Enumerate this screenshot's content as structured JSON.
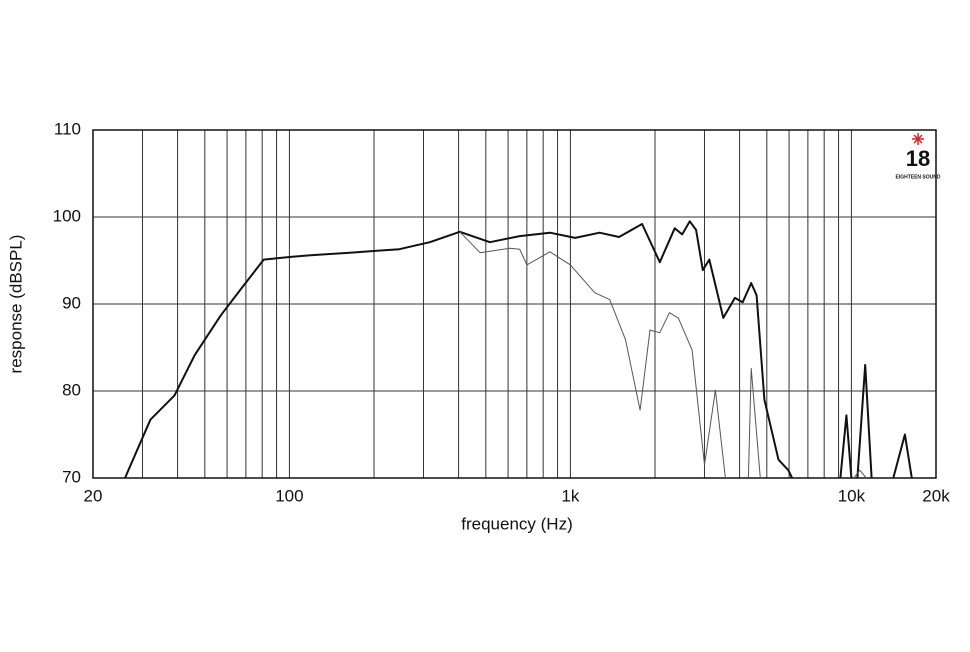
{
  "chart_data": {
    "type": "line",
    "xlabel": "frequency (Hz)",
    "ylabel": "response (dBSPL)",
    "logo": "18",
    "logo_subtitle": "EIGHTEEN SOUND",
    "xscale": "log",
    "grid": true,
    "xlim": [
      20,
      20000
    ],
    "ylim": [
      70,
      110
    ],
    "xticks": [
      20,
      100,
      {
        "value": 1000,
        "label": "1k"
      },
      {
        "value": 10000,
        "label": "10k"
      },
      {
        "value": 20000,
        "label": "20k"
      }
    ],
    "xgrid": [
      30,
      40,
      50,
      60,
      70,
      80,
      90,
      200,
      300,
      400,
      500,
      600,
      700,
      800,
      900,
      2000,
      3000,
      4000,
      5000,
      6000,
      7000,
      8000,
      9000
    ],
    "yticks": [
      70,
      80,
      90,
      100,
      110
    ],
    "series": [
      {
        "color": "#111111",
        "width": 2,
        "x": [
          26,
          32,
          39,
          46,
          57,
          69,
          81,
          100,
          119,
          164,
          246,
          316,
          404,
          517,
          660,
          845,
          1040,
          1270,
          1490,
          1800,
          2080,
          2350,
          2500,
          2660,
          2800,
          2960,
          3120,
          3500,
          3850,
          4100,
          4400,
          4600,
          4900,
          5500,
          5960,
          6150,
          null,
          9140,
          9600,
          10000,
          null,
          10500,
          11200,
          11800,
          null,
          14100,
          15500,
          16400
        ],
        "values": [
          70,
          76.7,
          79.5,
          84.1,
          88.7,
          92.2,
          95.1,
          95.4,
          95.6,
          95.9,
          96.3,
          97.1,
          98.3,
          97.1,
          97.8,
          98.2,
          97.6,
          98.2,
          97.7,
          99.2,
          94.8,
          98.7,
          98.0,
          99.5,
          98.5,
          93.9,
          95.1,
          88.4,
          90.7,
          90.2,
          92.4,
          91.0,
          79,
          72.1,
          70.9,
          70,
          null,
          70,
          77.2,
          70,
          null,
          70,
          83,
          70,
          null,
          70,
          75,
          70
        ]
      },
      {
        "color": "#555555",
        "width": 1,
        "x": [
          404,
          477,
          608,
          660,
          700,
          845,
          1000,
          1220,
          1380,
          1570,
          1770,
          1920,
          2080,
          2250,
          2420,
          2710,
          3000,
          3280,
          3560,
          null,
          4300,
          4400,
          4740,
          null,
          10200,
          10700,
          11300
        ],
        "values": [
          98.3,
          95.9,
          96.4,
          96.3,
          94.5,
          96.0,
          94.5,
          91.3,
          90.5,
          85.9,
          77.8,
          87,
          86.7,
          89,
          88.4,
          84.7,
          71.5,
          80.1,
          70,
          null,
          70,
          82.6,
          70,
          null,
          70,
          70.9,
          70
        ]
      }
    ]
  }
}
